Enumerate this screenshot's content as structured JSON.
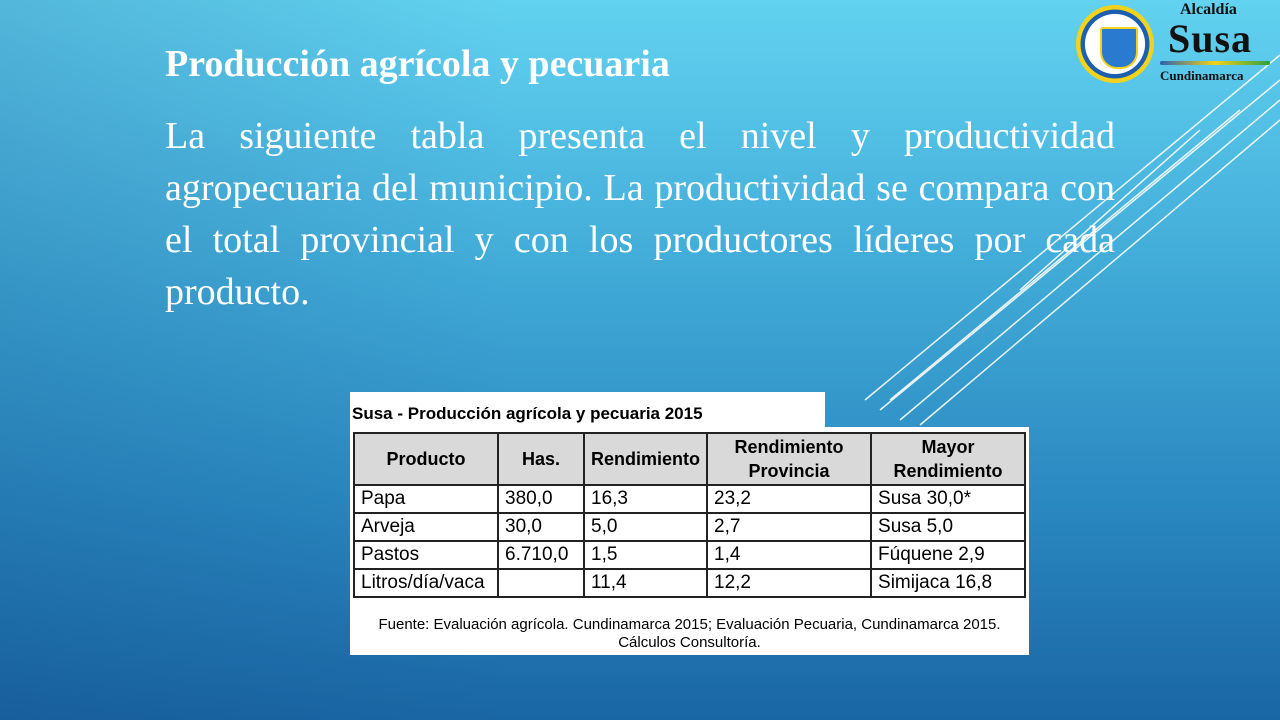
{
  "slide": {
    "title": "Producción agrícola y pecuaria",
    "paragraph": "La siguiente tabla presenta el nivel y productividad agropecuaria del municipio. La productividad se compara con el total provincial y con los productores líderes por cada producto."
  },
  "logo": {
    "line1": "Alcaldía",
    "line2": "Susa",
    "line3": "Cundinamarca",
    "colors": [
      "#1a5fb0",
      "#f2d21a",
      "#2aa040"
    ]
  },
  "table": {
    "title": "Susa - Producción agrícola y pecuaria 2015",
    "headers": [
      "Producto",
      "Has.",
      "Rendimiento",
      "Rendimiento Provincia",
      "Mayor Rendimiento"
    ],
    "rows": [
      [
        "Papa",
        "380,0",
        "16,3",
        "23,2",
        "Susa 30,0*"
      ],
      [
        "Arveja",
        "30,0",
        "5,0",
        "2,7",
        "Susa 5,0"
      ],
      [
        "Pastos",
        "6.710,0",
        "1,5",
        "1,4",
        "Fúquene 2,9"
      ],
      [
        "Litros/día/vaca",
        "",
        "11,4",
        "12,2",
        "Simijaca 16,8"
      ]
    ],
    "source": "Fuente: Evaluación agrícola. Cundinamarca 2015; Evaluación Pecuaria, Cundinamarca 2015. Cálculos Consultoría."
  }
}
